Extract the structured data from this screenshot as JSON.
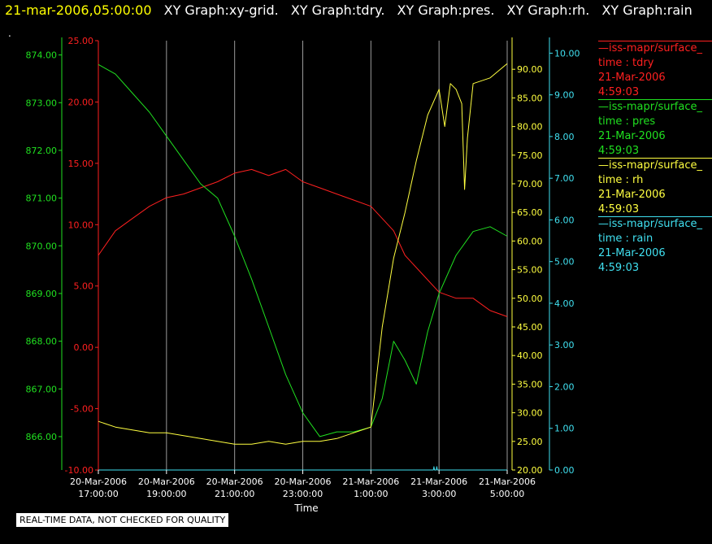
{
  "header": {
    "timestamp": "21-mar-2006,05:00:00",
    "graph_titles": [
      "XY Graph:xy-grid.",
      "XY Graph:tdry.",
      "XY Graph:pres.",
      "XY Graph:rh.",
      "XY Graph:rain"
    ]
  },
  "dot": ".",
  "notice": "REAL-TIME DATA, NOT CHECKED FOR QUALITY",
  "legend": [
    {
      "source": "—iss-mapr/surface_",
      "var": "time : tdry",
      "date": "21-Mar-2006",
      "time": "4:59:03",
      "color": "#ff2020"
    },
    {
      "source": "—iss-mapr/surface_",
      "var": "time : pres",
      "date": "21-Mar-2006",
      "time": "4:59:03",
      "color": "#20e020"
    },
    {
      "source": "—iss-mapr/surface_",
      "var": "time : rh",
      "date": "21-Mar-2006",
      "time": "4:59:03",
      "color": "#ffff40"
    },
    {
      "source": "—iss-mapr/surface_",
      "var": "time : rain",
      "date": "21-Mar-2006",
      "time": "4:59:03",
      "color": "#40e0f0"
    }
  ],
  "chart_data": {
    "type": "line",
    "xlabel": "Time",
    "x_ticks": [
      {
        "date": "20-Mar-2006",
        "time": "17:00:00"
      },
      {
        "date": "20-Mar-2006",
        "time": "19:00:00"
      },
      {
        "date": "20-Mar-2006",
        "time": "21:00:00"
      },
      {
        "date": "20-Mar-2006",
        "time": "23:00:00"
      },
      {
        "date": "21-Mar-2006",
        "time": "1:00:00"
      },
      {
        "date": "21-Mar-2006",
        "time": "3:00:00"
      },
      {
        "date": "21-Mar-2006",
        "time": "5:00:00"
      }
    ],
    "x_range": [
      "2006-03-20T17:00:00",
      "2006-03-21T05:00:00"
    ],
    "grid": true,
    "axes": [
      {
        "id": "pres",
        "color": "#20e020",
        "range": [
          865.3,
          874.3
        ],
        "ticks": [
          "866.00",
          "867.00",
          "868.00",
          "869.00",
          "870.00",
          "871.00",
          "872.00",
          "873.00",
          "874.00"
        ]
      },
      {
        "id": "tdry",
        "color": "#ff2020",
        "range": [
          -10,
          25
        ],
        "ticks": [
          "-10.00",
          "-5.00",
          "0.00",
          "5.00",
          "10.00",
          "15.00",
          "20.00",
          "25.00"
        ]
      },
      {
        "id": "rh",
        "color": "#ffff40",
        "range": [
          20,
          95
        ],
        "ticks": [
          "20.00",
          "25.00",
          "30.00",
          "35.00",
          "40.00",
          "45.00",
          "50.00",
          "55.00",
          "60.00",
          "65.00",
          "70.00",
          "75.00",
          "80.00",
          "85.00",
          "90.00"
        ]
      },
      {
        "id": "rain",
        "color": "#40e0f0",
        "range": [
          0,
          10.3
        ],
        "ticks": [
          "0.00",
          "1.00",
          "2.00",
          "3.00",
          "4.00",
          "5.00",
          "6.00",
          "7.00",
          "8.00",
          "9.00",
          "10.00"
        ]
      }
    ],
    "series": [
      {
        "axis": "tdry",
        "color": "#ff2020",
        "x": [
          "2006-03-20T17:00:00",
          "2006-03-20T17:30:00",
          "2006-03-20T18:00:00",
          "2006-03-20T18:30:00",
          "2006-03-20T19:00:00",
          "2006-03-20T19:30:00",
          "2006-03-20T20:00:00",
          "2006-03-20T20:30:00",
          "2006-03-20T21:00:00",
          "2006-03-20T21:30:00",
          "2006-03-20T22:00:00",
          "2006-03-20T22:30:00",
          "2006-03-20T23:00:00",
          "2006-03-20T23:30:00",
          "2006-03-21T00:00:00",
          "2006-03-21T00:30:00",
          "2006-03-21T01:00:00",
          "2006-03-21T01:20:00",
          "2006-03-21T01:40:00",
          "2006-03-21T02:00:00",
          "2006-03-21T02:30:00",
          "2006-03-21T03:00:00",
          "2006-03-21T03:30:00",
          "2006-03-21T04:00:00",
          "2006-03-21T04:30:00",
          "2006-03-21T05:00:00"
        ],
        "y": [
          7.5,
          9.5,
          10.5,
          11.5,
          12.2,
          12.5,
          13.0,
          13.5,
          14.2,
          14.5,
          14.0,
          14.5,
          13.5,
          13.0,
          12.5,
          12.0,
          11.5,
          10.5,
          9.5,
          7.5,
          6.0,
          4.5,
          4.0,
          4.0,
          3.0,
          2.5
        ]
      },
      {
        "axis": "pres",
        "color": "#20e020",
        "x": [
          "2006-03-20T17:00:00",
          "2006-03-20T17:30:00",
          "2006-03-20T18:00:00",
          "2006-03-20T18:30:00",
          "2006-03-20T19:00:00",
          "2006-03-20T19:30:00",
          "2006-03-20T20:00:00",
          "2006-03-20T20:30:00",
          "2006-03-20T21:00:00",
          "2006-03-20T21:30:00",
          "2006-03-20T22:00:00",
          "2006-03-20T22:30:00",
          "2006-03-20T23:00:00",
          "2006-03-20T23:30:00",
          "2006-03-21T00:00:00",
          "2006-03-21T00:30:00",
          "2006-03-21T01:00:00",
          "2006-03-21T01:20:00",
          "2006-03-21T01:40:00",
          "2006-03-21T02:00:00",
          "2006-03-21T02:20:00",
          "2006-03-21T02:40:00",
          "2006-03-21T03:00:00",
          "2006-03-21T03:30:00",
          "2006-03-21T04:00:00",
          "2006-03-21T04:30:00",
          "2006-03-21T05:00:00"
        ],
        "y": [
          873.8,
          873.6,
          873.2,
          872.8,
          872.3,
          871.8,
          871.3,
          871.0,
          870.2,
          869.3,
          868.3,
          867.3,
          866.5,
          866.0,
          866.1,
          866.1,
          866.2,
          866.8,
          868.0,
          867.6,
          867.1,
          868.2,
          869.0,
          869.8,
          870.3,
          870.4,
          870.2
        ]
      },
      {
        "axis": "rh",
        "color": "#ffff40",
        "x": [
          "2006-03-20T17:00:00",
          "2006-03-20T17:30:00",
          "2006-03-20T18:00:00",
          "2006-03-20T18:30:00",
          "2006-03-20T19:00:00",
          "2006-03-20T19:30:00",
          "2006-03-20T20:00:00",
          "2006-03-20T20:30:00",
          "2006-03-20T21:00:00",
          "2006-03-20T21:30:00",
          "2006-03-20T22:00:00",
          "2006-03-20T22:30:00",
          "2006-03-20T23:00:00",
          "2006-03-20T23:30:00",
          "2006-03-21T00:00:00",
          "2006-03-21T00:30:00",
          "2006-03-21T01:00:00",
          "2006-03-21T01:20:00",
          "2006-03-21T01:40:00",
          "2006-03-21T02:00:00",
          "2006-03-21T02:20:00",
          "2006-03-21T02:40:00",
          "2006-03-21T03:00:00",
          "2006-03-21T03:10:00",
          "2006-03-21T03:20:00",
          "2006-03-21T03:30:00",
          "2006-03-21T03:40:00",
          "2006-03-21T03:45:00",
          "2006-03-21T03:50:00",
          "2006-03-21T04:00:00",
          "2006-03-21T04:30:00",
          "2006-03-21T05:00:00"
        ],
        "y": [
          28.5,
          27.5,
          27.0,
          26.5,
          26.5,
          26.0,
          25.5,
          25.0,
          24.5,
          24.5,
          25.0,
          24.5,
          25.0,
          25.0,
          25.5,
          26.5,
          27.5,
          45.0,
          57.0,
          65.0,
          74.0,
          82.0,
          86.5,
          80.0,
          87.5,
          86.5,
          84.0,
          69.0,
          78.0,
          87.5,
          88.5,
          91.0
        ]
      },
      {
        "axis": "rain",
        "color": "#40e0f0",
        "x": [
          "2006-03-20T17:00:00",
          "2006-03-21T02:50:00",
          "2006-03-21T02:51:00",
          "2006-03-21T02:52:00",
          "2006-03-21T02:55:00",
          "2006-03-21T02:56:00",
          "2006-03-21T02:57:00",
          "2006-03-21T05:00:00"
        ],
        "y": [
          0.0,
          0.0,
          0.08,
          0.0,
          0.0,
          0.08,
          0.0,
          0.0
        ]
      }
    ]
  }
}
